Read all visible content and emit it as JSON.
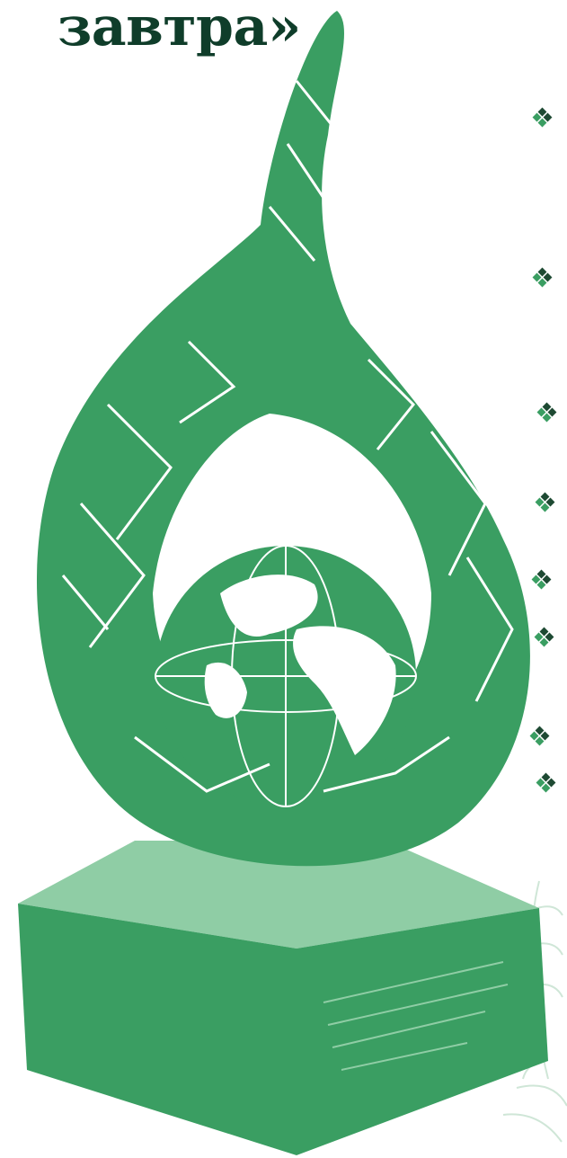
{
  "heading": {
    "text": "завтра»"
  },
  "colors": {
    "heading": "#0f3d2a",
    "trophy_main": "#3a9e62",
    "trophy_light": "#8fcda5",
    "trophy_highlight": "#ffffff",
    "bullet_dark": "#1e4a33",
    "bullet_green": "#3a9e62",
    "leaf_faint": "#cfe6d7"
  },
  "illustration": {
    "icon": "crystal-drop-trophy-with-globe-icon"
  },
  "bullets": {
    "icon": "four-diamond-bullet-icon",
    "count": 8
  }
}
